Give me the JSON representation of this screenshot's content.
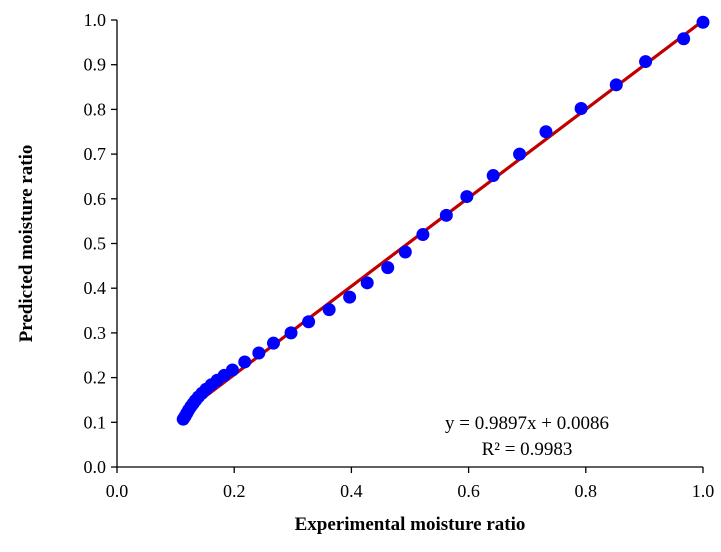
{
  "chart_data": {
    "type": "scatter",
    "xlabel": "Experimental moisture ratio",
    "ylabel": "Predicted moisture ratio",
    "xlim": [
      0.0,
      1.0
    ],
    "ylim": [
      0.0,
      1.0
    ],
    "x_ticks": [
      "0.0",
      "0.2",
      "0.4",
      "0.6",
      "0.8",
      "1.0"
    ],
    "y_ticks": [
      "0.0",
      "0.1",
      "0.2",
      "0.3",
      "0.4",
      "0.5",
      "0.6",
      "0.7",
      "0.8",
      "0.9",
      "1.0"
    ],
    "grid": false,
    "colors": {
      "points": "#0000ff",
      "trendline": "#c00000"
    },
    "series": [
      {
        "x": [
          0.113,
          0.116,
          0.119,
          0.122,
          0.126,
          0.13,
          0.134,
          0.139,
          0.145,
          0.152,
          0.161,
          0.171,
          0.183,
          0.197,
          0.218,
          0.242,
          0.267,
          0.297,
          0.327,
          0.362,
          0.397,
          0.427,
          0.462,
          0.492,
          0.522,
          0.562,
          0.597,
          0.642,
          0.687,
          0.732,
          0.792,
          0.852,
          0.902,
          0.967,
          1.0
        ],
        "y": [
          0.107,
          0.113,
          0.12,
          0.127,
          0.135,
          0.142,
          0.149,
          0.157,
          0.165,
          0.174,
          0.184,
          0.194,
          0.205,
          0.217,
          0.235,
          0.255,
          0.277,
          0.3,
          0.325,
          0.352,
          0.38,
          0.412,
          0.446,
          0.481,
          0.52,
          0.563,
          0.605,
          0.652,
          0.7,
          0.75,
          0.802,
          0.855,
          0.907,
          0.958,
          0.995
        ]
      }
    ],
    "trendline": {
      "type": "linear",
      "slope": 0.9897,
      "intercept": 0.0086,
      "x_range": [
        0.113,
        1.0
      ]
    },
    "annotations": [
      "y = 0.9897x + 0.0086",
      "R² = 0.9983"
    ]
  }
}
